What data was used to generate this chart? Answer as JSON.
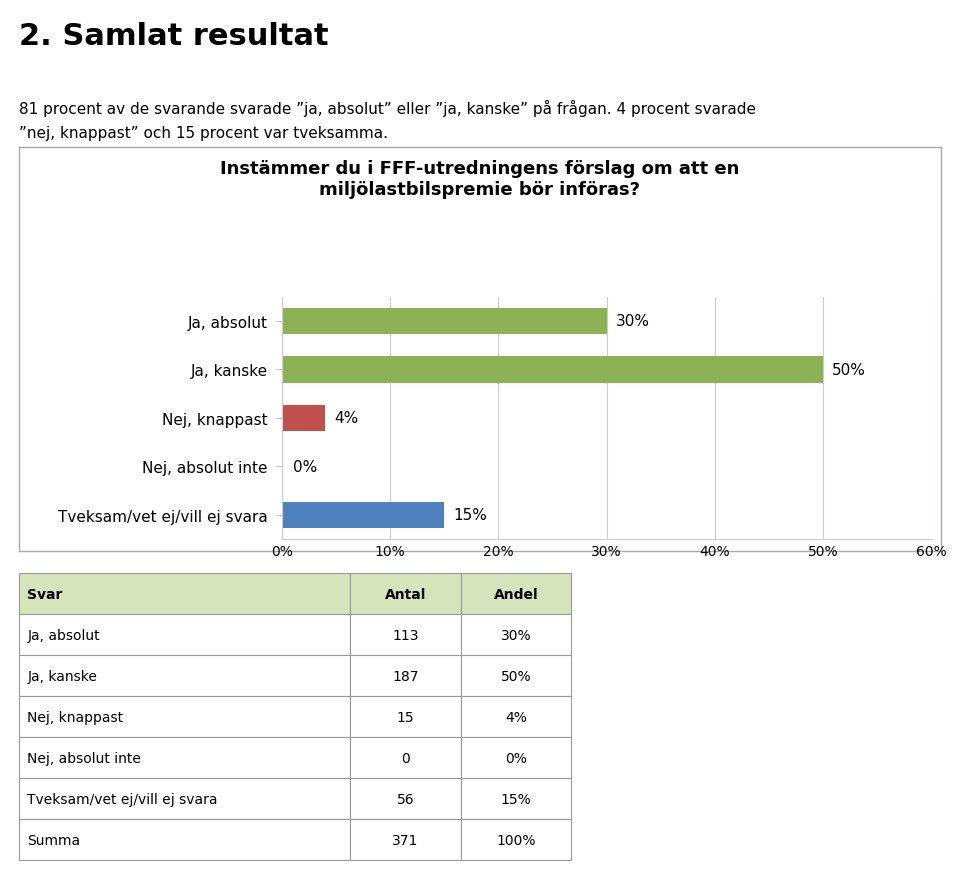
{
  "title_heading": "2. Samlat resultat",
  "subtitle_line1": "81 procent av de svarande svarade ”ja, absolut” eller ”ja, kanske” på frågan. 4 procent svarade",
  "subtitle_line2": "”nej, knappast” och 15 procent var tveksamma.",
  "chart_title": "Instämmer du i FFF-utredningens förslag om att en\nmiljölastbilspremie bör införas?",
  "categories": [
    "Ja, absolut",
    "Ja, kanske",
    "Nej, knappast",
    "Nej, absolut inte",
    "Tveksam/vet ej/vill ej svara"
  ],
  "values": [
    30,
    50,
    4,
    0,
    15
  ],
  "bar_colors": [
    "#8DB255",
    "#8DB255",
    "#C0504D",
    "#C0504D",
    "#4F81BD"
  ],
  "xlim": [
    0,
    60
  ],
  "xtick_labels": [
    "0%",
    "10%",
    "20%",
    "30%",
    "40%",
    "50%",
    "60%"
  ],
  "xtick_values": [
    0,
    10,
    20,
    30,
    40,
    50,
    60
  ],
  "value_labels": [
    "30%",
    "50%",
    "4%",
    "0%",
    "15%"
  ],
  "table_headers": [
    "Svar",
    "Antal",
    "Andel"
  ],
  "table_data": [
    [
      "Ja, absolut",
      "113",
      "30%"
    ],
    [
      "Ja, kanske",
      "187",
      "50%"
    ],
    [
      "Nej, knappast",
      "15",
      "4%"
    ],
    [
      "Nej, absolut inte",
      "0",
      "0%"
    ],
    [
      "Tveksam/vet ej/vill ej svara",
      "56",
      "15%"
    ],
    [
      "Summa",
      "371",
      "100%"
    ]
  ],
  "table_header_bg": "#D6E4BC",
  "table_row_bg": "#FFFFFF",
  "chart_bg": "#FFFFFF",
  "chart_border": "#AAAAAA",
  "grid_color": "#CCCCCC",
  "text_color": "#000000"
}
